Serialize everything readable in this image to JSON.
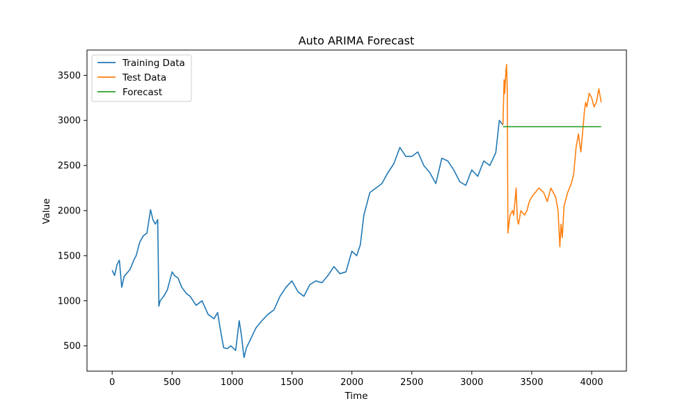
{
  "chart_data": {
    "type": "line",
    "title": "Auto ARIMA Forecast",
    "xlabel": "Time",
    "ylabel": "Value",
    "xlim": [
      -210,
      4290
    ],
    "ylim": [
      220,
      3780
    ],
    "xticks": [
      0,
      500,
      1000,
      1500,
      2000,
      2500,
      3000,
      3500,
      4000
    ],
    "yticks": [
      500,
      1000,
      1500,
      2000,
      2500,
      3000,
      3500
    ],
    "grid": false,
    "legend_position": "top-left",
    "series": [
      {
        "name": "Training Data",
        "color": "#1f77b4",
        "x": [
          0,
          20,
          40,
          60,
          80,
          100,
          120,
          150,
          180,
          200,
          230,
          260,
          290,
          320,
          340,
          360,
          380,
          390,
          400,
          430,
          460,
          500,
          520,
          550,
          580,
          620,
          650,
          700,
          750,
          800,
          850,
          880,
          900,
          930,
          960,
          990,
          1030,
          1060,
          1080,
          1095,
          1100,
          1120,
          1150,
          1200,
          1250,
          1300,
          1350,
          1400,
          1450,
          1500,
          1550,
          1600,
          1650,
          1700,
          1750,
          1800,
          1850,
          1900,
          1950,
          2000,
          2040,
          2070,
          2100,
          2150,
          2200,
          2250,
          2300,
          2350,
          2400,
          2450,
          2500,
          2550,
          2600,
          2650,
          2700,
          2750,
          2800,
          2850,
          2900,
          2950,
          3000,
          3050,
          3100,
          3150,
          3200,
          3230,
          3260
        ],
        "y": [
          1340,
          1280,
          1400,
          1450,
          1150,
          1270,
          1300,
          1350,
          1450,
          1500,
          1650,
          1720,
          1750,
          2010,
          1900,
          1850,
          1900,
          940,
          1000,
          1050,
          1120,
          1320,
          1280,
          1250,
          1150,
          1080,
          1050,
          950,
          1000,
          850,
          800,
          870,
          700,
          480,
          470,
          500,
          450,
          780,
          600,
          420,
          370,
          480,
          560,
          700,
          780,
          850,
          900,
          1050,
          1150,
          1220,
          1100,
          1050,
          1180,
          1220,
          1200,
          1280,
          1380,
          1300,
          1320,
          1550,
          1500,
          1620,
          1950,
          2200,
          2250,
          2300,
          2420,
          2520,
          2700,
          2600,
          2600,
          2650,
          2500,
          2420,
          2300,
          2580,
          2550,
          2450,
          2320,
          2280,
          2450,
          2380,
          2550,
          2500,
          2640,
          3000,
          2950
        ]
      },
      {
        "name": "Test Data",
        "color": "#ff7f0e",
        "x": [
          3260,
          3270,
          3275,
          3285,
          3290,
          3296,
          3302,
          3310,
          3320,
          3340,
          3350,
          3370,
          3380,
          3390,
          3410,
          3440,
          3460,
          3480,
          3500,
          3530,
          3560,
          3600,
          3630,
          3660,
          3700,
          3720,
          3735,
          3745,
          3755,
          3770,
          3800,
          3830,
          3850,
          3870,
          3890,
          3900,
          3910,
          3920,
          3930,
          3940,
          3950,
          3960,
          3980,
          4000,
          4020,
          4040,
          4060,
          4080
        ],
        "y": [
          2950,
          3450,
          3300,
          3550,
          3620,
          3350,
          1750,
          1850,
          1950,
          2000,
          1950,
          2250,
          1900,
          1850,
          2000,
          1950,
          2000,
          2100,
          2150,
          2200,
          2250,
          2200,
          2100,
          2250,
          2150,
          2000,
          1600,
          1850,
          1700,
          2050,
          2200,
          2300,
          2400,
          2700,
          2850,
          2750,
          2650,
          2800,
          2950,
          3100,
          3200,
          3150,
          3300,
          3250,
          3150,
          3200,
          3350,
          3200
        ]
      },
      {
        "name": "Forecast",
        "color": "#2ca02c",
        "x": [
          3260,
          4080
        ],
        "y": [
          2930,
          2930
        ]
      }
    ]
  }
}
